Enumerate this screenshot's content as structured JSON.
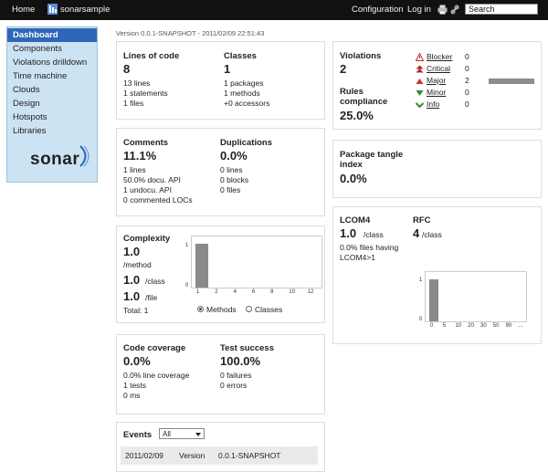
{
  "header": {
    "home": "Home",
    "project": "sonarsample",
    "configuration": "Configuration",
    "login": "Log in",
    "search_value": "Search"
  },
  "sidebar": {
    "items": [
      {
        "label": "Dashboard",
        "active": true
      },
      {
        "label": "Components"
      },
      {
        "label": "Violations drilldown"
      },
      {
        "label": "Time machine"
      },
      {
        "label": "Clouds"
      },
      {
        "label": "Design"
      },
      {
        "label": "Hotspots"
      },
      {
        "label": "Libraries"
      }
    ],
    "logo": "sonar"
  },
  "version": "Version 0.0.1-SNAPSHOT - 2011/02/09 22:51:43",
  "size": {
    "loc_label": "Lines of code",
    "loc_value": "8",
    "loc_lines": [
      "13 lines",
      "1 statements",
      "1 files"
    ],
    "classes_label": "Classes",
    "classes_value": "1",
    "classes_lines": [
      "1 packages",
      "1 methods",
      "+0 accessors"
    ]
  },
  "comments": {
    "label": "Comments",
    "value": "11.1%",
    "lines": [
      "1 lines",
      "50.0% docu. API",
      "1 undocu. API",
      "0 commented LOCs"
    ],
    "dup_label": "Duplications",
    "dup_value": "0.0%",
    "dup_lines": [
      "0 lines",
      "0 blocks",
      "0 files"
    ]
  },
  "complexity": {
    "label": "Complexity",
    "method_value": "1.0",
    "method_unit": "/method",
    "class_value": "1.0",
    "class_unit": "/class",
    "file_value": "1.0",
    "file_unit": "/file",
    "total": "Total: 1",
    "radio_methods": "Methods",
    "radio_classes": "Classes",
    "chart_data": {
      "type": "bar",
      "categories": [
        "1",
        "2",
        "4",
        "6",
        "8",
        "10",
        "12"
      ],
      "values": [
        1,
        0,
        0,
        0,
        0,
        0,
        0
      ],
      "yticks": [
        "1",
        "0"
      ],
      "ylim": [
        0,
        1
      ]
    }
  },
  "coverage": {
    "label": "Code coverage",
    "value": "0.0%",
    "lines": [
      "0.0% line coverage",
      "1 tests",
      "0 ms"
    ],
    "test_label": "Test success",
    "test_value": "100.0%",
    "test_lines": [
      "0 failures",
      "0 errors"
    ]
  },
  "events": {
    "label": "Events",
    "filter": "All",
    "row": {
      "date": "2011/02/09",
      "type": "Version",
      "name": "0.0.1-SNAPSHOT"
    }
  },
  "violations": {
    "label": "Violations",
    "value": "2",
    "compliance_label_1": "Rules",
    "compliance_label_2": "compliance",
    "compliance_value": "25.0%",
    "severities": [
      {
        "name": "Blocker",
        "count": "0",
        "color": "#c0302b",
        "icon": "blocker-icon"
      },
      {
        "name": "Critical",
        "count": "0",
        "color": "#b42a22",
        "icon": "critical-icon"
      },
      {
        "name": "Major",
        "count": "2",
        "color": "#c43a2a",
        "icon": "major-icon"
      },
      {
        "name": "Minor",
        "count": "0",
        "color": "#2c8f2a",
        "icon": "minor-icon"
      },
      {
        "name": "Info",
        "count": "0",
        "color": "#2c8f2a",
        "icon": "info-icon"
      }
    ]
  },
  "tangle": {
    "label_1": "Package tangle",
    "label_2": "index",
    "value": "0.0%"
  },
  "lcom4": {
    "label": "LCOM4",
    "value": "1.0",
    "unit": "/class",
    "note_1": "0.0% files having",
    "note_2": "LCOM4>1",
    "rfc_label": "RFC",
    "rfc_value": "4",
    "rfc_unit": "/class",
    "chart_data": {
      "type": "bar",
      "categories": [
        "0",
        "5",
        "10",
        "20",
        "30",
        "50",
        "90",
        "..."
      ],
      "values": [
        1,
        0,
        0,
        0,
        0,
        0,
        0,
        0
      ],
      "yticks": [
        "1",
        "0"
      ],
      "ylim": [
        0,
        1
      ]
    }
  }
}
